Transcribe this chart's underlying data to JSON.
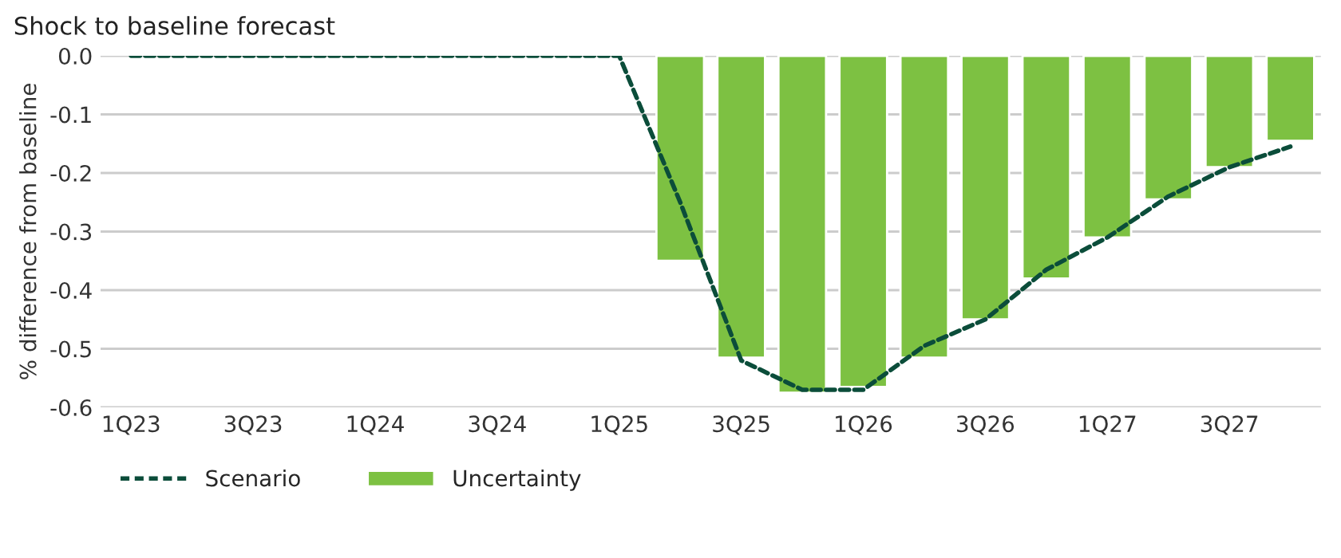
{
  "chart_data": {
    "type": "bar",
    "title": "Shock to baseline forecast",
    "ylabel": "% difference from baseline",
    "categories": [
      "1Q23",
      null,
      "3Q23",
      null,
      "1Q24",
      null,
      "3Q24",
      null,
      "1Q25",
      null,
      "3Q25",
      null,
      "1Q26",
      null,
      "3Q26",
      null,
      "1Q27",
      null,
      "3Q27",
      null
    ],
    "series": [
      {
        "name": "Scenario",
        "type": "line",
        "line_style": "dashed",
        "color": "#0b4d3a",
        "values": [
          0,
          0,
          0,
          0,
          0,
          0,
          0,
          0,
          0,
          -0.25,
          -0.52,
          -0.57,
          -0.57,
          -0.495,
          -0.45,
          -0.365,
          -0.31,
          -0.24,
          -0.19,
          -0.155
        ]
      },
      {
        "name": "Uncertainty",
        "color": "#7dc142",
        "values": [
          null,
          null,
          null,
          null,
          null,
          null,
          null,
          null,
          null,
          -0.35,
          -0.515,
          -0.575,
          -0.565,
          -0.515,
          -0.45,
          -0.38,
          -0.31,
          -0.245,
          -0.19,
          -0.145
        ]
      }
    ],
    "ylim": [
      -0.6,
      0
    ],
    "yticks": [
      {
        "value": -0.6,
        "label": "-0.6"
      },
      {
        "value": -0.5,
        "label": "-0.5"
      },
      {
        "value": -0.4,
        "label": "-0.4"
      },
      {
        "value": -0.3,
        "label": "-0.3"
      },
      {
        "value": -0.2,
        "label": "-0.2"
      },
      {
        "value": -0.1,
        "label": "-0.1"
      },
      {
        "value": 0,
        "label": "0.0"
      }
    ],
    "grid": "y",
    "legend": "bottom left"
  }
}
